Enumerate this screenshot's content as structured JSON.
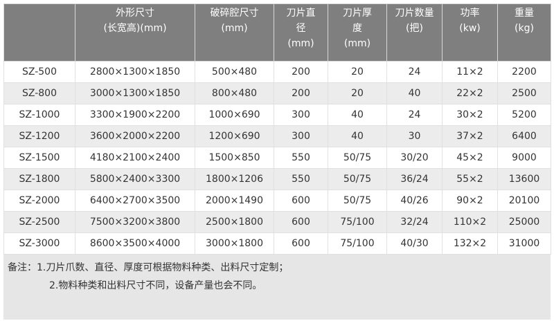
{
  "table": {
    "headers": [
      [
        "",
        ""
      ],
      [
        "外形尺寸",
        "(长宽高)(mm)"
      ],
      [
        "破碎腔尺寸",
        "(mm)"
      ],
      [
        "刀片直",
        "径",
        "(mm)"
      ],
      [
        "刀片厚",
        "度",
        "(mm)"
      ],
      [
        "刀片数量",
        "(把)"
      ],
      [
        "功率",
        "(kw)"
      ],
      [
        "重量",
        "(kg)"
      ]
    ],
    "rows": [
      [
        "SZ-500",
        "2800×1300×1850",
        "500×480",
        "200",
        "20",
        "24",
        "11×2",
        "2200"
      ],
      [
        "SZ-800",
        "3000×1300×1850",
        "800×480",
        "200",
        "20",
        "40",
        "22×2",
        "2500"
      ],
      [
        "SZ-1000",
        "3300×1900×2200",
        "1000×690",
        "300",
        "40",
        "24",
        "30×2",
        "5200"
      ],
      [
        "SZ-1200",
        "3600×2000×2200",
        "1200×690",
        "300",
        "40",
        "30",
        "37×2",
        "6400"
      ],
      [
        "SZ-1500",
        "4180×2100×2400",
        "1500×850",
        "550",
        "50/75",
        "30/20",
        "45×2",
        "9000"
      ],
      [
        "SZ-1800",
        "5800×2400×3300",
        "1800×1206",
        "550",
        "50/75",
        "36/24",
        "55×2",
        "13600"
      ],
      [
        "SZ-2000",
        "6400×2700×3500",
        "2000×1490",
        "600",
        "50/75",
        "40/26",
        "90×2",
        "20100"
      ],
      [
        "SZ-2500",
        "7500×3200×3800",
        "2500×1800",
        "600",
        "75/100",
        "32/24",
        "110×2",
        "25000"
      ],
      [
        "SZ-3000",
        "8600×3500×4000",
        "3000×1800",
        "600",
        "75/100",
        "40/30",
        "132×2",
        "31000"
      ]
    ]
  },
  "note": {
    "line1": "备注：1.刀片爪数、直径、厚度可根据物料种类、出料尺寸定制；",
    "line2": "2.物料种类和出料尺寸不同，设备产量也会不同。"
  },
  "colors": {
    "header_bg": "#7f7f7f",
    "alt_row": "#ececec",
    "note_bg": "#e6e6e6"
  }
}
